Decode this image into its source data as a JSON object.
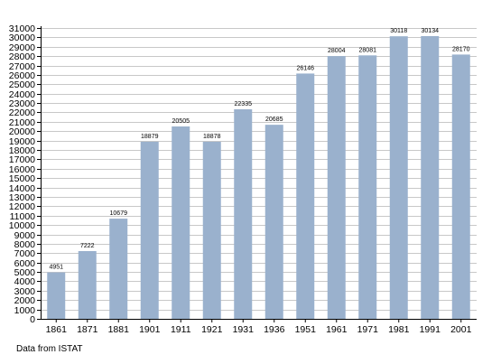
{
  "chart_data": {
    "type": "bar",
    "categories": [
      "1861",
      "1871",
      "1881",
      "1901",
      "1911",
      "1921",
      "1931",
      "1936",
      "1951",
      "1961",
      "1971",
      "1981",
      "1991",
      "2001"
    ],
    "values": [
      4951,
      7222,
      10679,
      18879,
      20505,
      18878,
      22335,
      20685,
      26146,
      28004,
      28081,
      30118,
      30134,
      28170
    ],
    "data_labels": [
      "4951",
      "7222",
      "10679",
      "18879",
      "20505",
      "18878",
      "22335",
      "20685",
      "26146",
      "28004",
      "28081",
      "30118",
      "30134",
      "28170"
    ],
    "ylim": [
      0,
      31000
    ],
    "y_tick_step": 1000,
    "grid": true,
    "colors": {
      "bar": "#9ab1cd",
      "grid": "#c8c8c8",
      "axis": "#000000"
    }
  },
  "source_note": "Data from ISTAT"
}
